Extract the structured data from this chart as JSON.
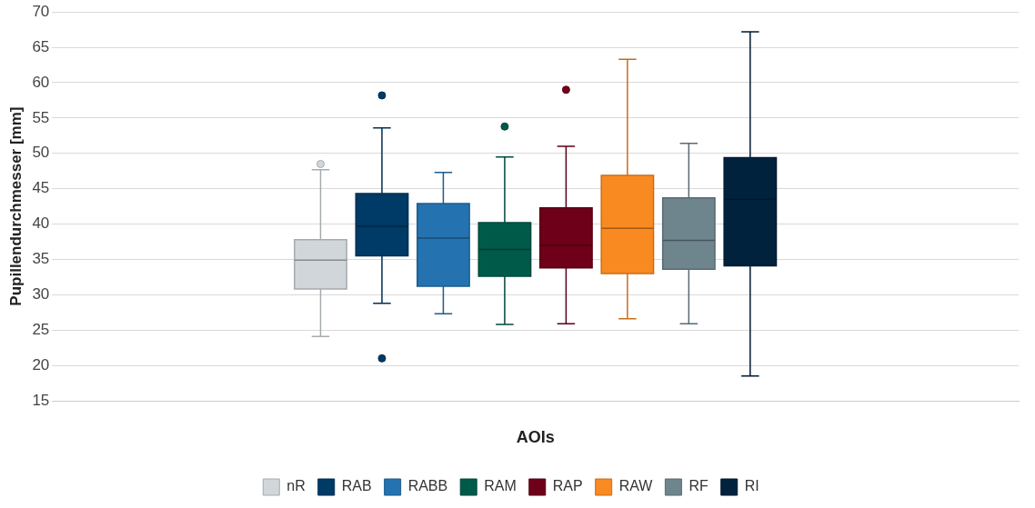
{
  "chart_data": {
    "type": "box",
    "xlabel": "AOIs",
    "ylabel": "Pupillendurchmesser [mm]",
    "categories": [
      null
    ],
    "ylim": [
      15,
      70
    ],
    "yticks": [
      15,
      20,
      25,
      30,
      35,
      40,
      45,
      50,
      55,
      60,
      65,
      70
    ],
    "grid": "y",
    "legend": "bottom",
    "series": [
      {
        "name": "nR",
        "color": "#d0d6d9",
        "boxes": [
          {
            "low": 24.1,
            "q1": 30.8,
            "median": 34.9,
            "q3": 37.8,
            "high": 47.7,
            "outliers": [
              48.5
            ]
          }
        ]
      },
      {
        "name": "RAB",
        "color": "#003a66",
        "boxes": [
          {
            "low": 28.8,
            "q1": 35.5,
            "median": 39.7,
            "q3": 44.3,
            "high": 53.6,
            "outliers": [
              58.2,
              21
            ]
          }
        ]
      },
      {
        "name": "RABB",
        "color": "#2473b0",
        "boxes": [
          {
            "low": 27.3,
            "q1": 31.2,
            "median": 38,
            "q3": 42.9,
            "high": 47.3
          }
        ]
      },
      {
        "name": "RAM",
        "color": "#005a4a",
        "boxes": [
          {
            "low": 25.8,
            "q1": 32.6,
            "median": 36.4,
            "q3": 40.2,
            "high": 49.5,
            "outliers": [
              53.8
            ]
          }
        ]
      },
      {
        "name": "RAP",
        "color": "#6e0019",
        "boxes": [
          {
            "low": 25.9,
            "q1": 33.8,
            "median": 37,
            "q3": 42.3,
            "high": 51,
            "outliers": [
              59
            ]
          }
        ]
      },
      {
        "name": "RAW",
        "color": "#f98a21",
        "boxes": [
          {
            "low": 26.6,
            "q1": 33,
            "median": 39.4,
            "q3": 46.9,
            "high": 63.3
          }
        ]
      },
      {
        "name": "RF",
        "color": "#6e858e",
        "boxes": [
          {
            "low": 25.9,
            "q1": 33.6,
            "median": 37.7,
            "q3": 43.7,
            "high": 51.4
          }
        ]
      },
      {
        "name": "RI",
        "color": "#00223d",
        "boxes": [
          {
            "low": 18.5,
            "q1": 34.1,
            "median": 43.5,
            "q3": 49.4,
            "high": 67.2
          }
        ]
      }
    ]
  }
}
